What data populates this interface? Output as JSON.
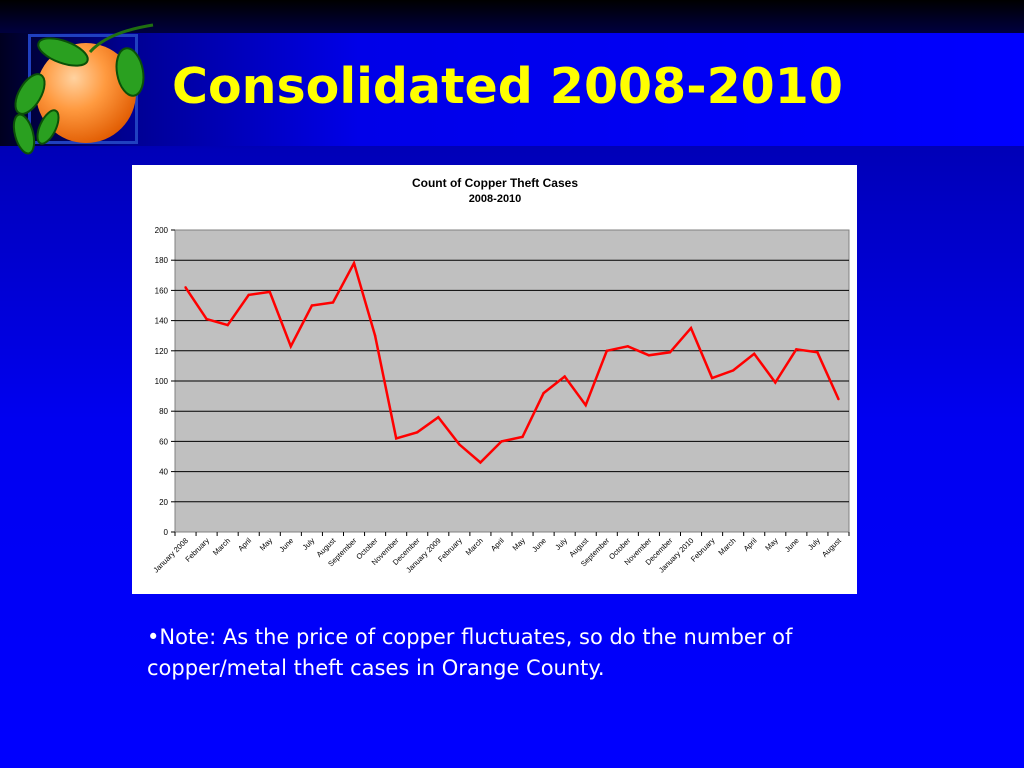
{
  "slide": {
    "title": "Consolidated 2008-2010",
    "note": "•Note: As the price of copper fluctuates, so do the number of copper/metal theft cases in Orange County.",
    "logo_icon": "orange-fruit-icon"
  },
  "colors": {
    "title": "#ffff00",
    "line": "#ff0000",
    "plot_bg": "#c0c0c0",
    "chart_bg": "#ffffff"
  },
  "chart_data": {
    "type": "line",
    "title": "Count of Copper Theft Cases",
    "subtitle": "2008-2010",
    "xlabel": "",
    "ylabel": "",
    "ylim": [
      0,
      200
    ],
    "yticks": [
      0,
      20,
      40,
      60,
      80,
      100,
      120,
      140,
      160,
      180,
      200
    ],
    "grid": true,
    "legend": "none",
    "categories": [
      "January 2008",
      "February",
      "March",
      "April",
      "May",
      "June",
      "July",
      "August",
      "September",
      "October",
      "November",
      "December",
      "January 2009",
      "February",
      "March",
      "April",
      "May",
      "June",
      "July",
      "August",
      "September",
      "October",
      "November",
      "December",
      "January 2010",
      "February",
      "March",
      "April",
      "May",
      "June",
      "July",
      "August"
    ],
    "series": [
      {
        "values": [
          162,
          141,
          137,
          157,
          159,
          123,
          150,
          152,
          178,
          130,
          62,
          66,
          76,
          58,
          46,
          60,
          63,
          92,
          103,
          84,
          120,
          123,
          117,
          119,
          135,
          102,
          107,
          118,
          99,
          121,
          119,
          88
        ]
      }
    ]
  }
}
